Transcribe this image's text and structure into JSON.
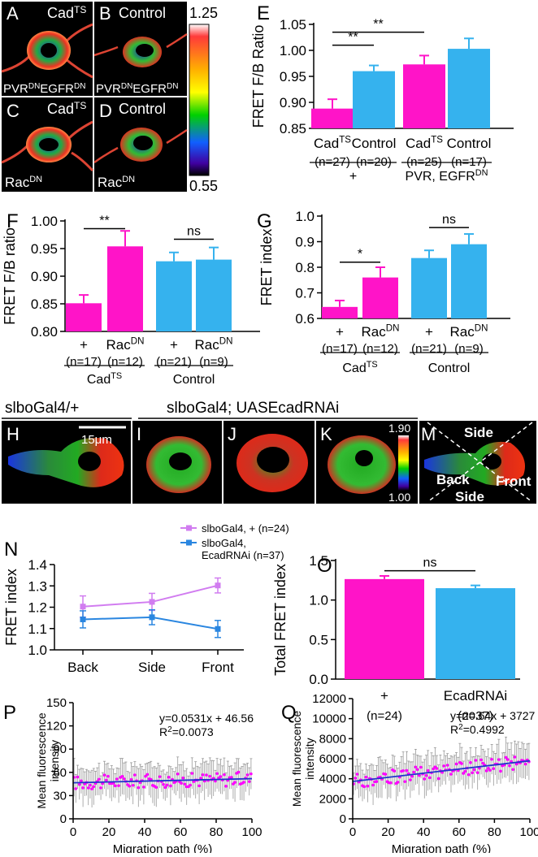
{
  "panels": {
    "A": {
      "letter": "A",
      "label": "Cad",
      "sup": "TS",
      "genotype": [
        "PVR",
        "DN",
        "EGFR",
        "DN"
      ]
    },
    "B": {
      "letter": "B",
      "label": "Control",
      "genotype": [
        "PVR",
        "DN",
        "EGFR",
        "DN"
      ]
    },
    "C": {
      "letter": "C",
      "label": "Cad",
      "sup": "TS",
      "genotype": [
        "Rac",
        "DN"
      ]
    },
    "D": {
      "letter": "D",
      "label": "Control",
      "genotype": [
        "Rac",
        "DN"
      ]
    },
    "scale1": {
      "max": "1.25",
      "min": "0.55"
    },
    "header_left": "slboGal4/+",
    "header_right": "slboGal4; UASEcadRNAi",
    "H": {
      "letter": "H",
      "scalebar": "15μm"
    },
    "I": {
      "letter": "I"
    },
    "J": {
      "letter": "J"
    },
    "K": {
      "letter": "K"
    },
    "scale2": {
      "max": "1.90",
      "min": "1.00"
    },
    "M": {
      "letter": "M",
      "side_top": "Side",
      "side_bottom": "Side",
      "back": "Back",
      "front": "Front"
    }
  },
  "colors": {
    "magenta": "#ff14c8",
    "cyan": "#35b2ee",
    "violet": "#d17cf0",
    "blue": "#2a86e0",
    "pinkdot": "#ff00ff",
    "fitline": "#2233cc"
  },
  "chart_data": [
    {
      "id": "E",
      "letter": "E",
      "type": "bar",
      "ylabel": "FRET F/B Ratio",
      "ylim": [
        0.85,
        1.05
      ],
      "yticks": [
        "0.85",
        "0.90",
        "0.95",
        "1.00",
        "1.05"
      ],
      "bars": [
        {
          "name": "Cad",
          "sup": "TS",
          "n": "(n=27)",
          "value": 0.888,
          "err": 0.018,
          "color": "magenta"
        },
        {
          "name": "Control",
          "sup": "",
          "n": "(n=20)",
          "value": 0.96,
          "err": 0.011,
          "color": "cyan"
        },
        {
          "name": "Cad",
          "sup": "TS",
          "n": "(n=25)",
          "value": 0.973,
          "err": 0.017,
          "color": "magenta"
        },
        {
          "name": "Control",
          "sup": "",
          "n": "(n=17)",
          "value": 1.003,
          "err": 0.02,
          "color": "cyan"
        }
      ],
      "groups": [
        {
          "label": "+",
          "sup": "",
          "bars": [
            0,
            1
          ]
        },
        {
          "label": "PVR, EGFR",
          "sup": "DN",
          "bars": [
            2,
            3
          ]
        }
      ],
      "sig": [
        {
          "label": "**",
          "from": 0,
          "to": 1,
          "y": 1.01
        },
        {
          "label": "**",
          "from": 0,
          "to": 2,
          "y": 1.035
        }
      ]
    },
    {
      "id": "F",
      "letter": "F",
      "type": "bar",
      "ylabel": "FRET F/B ratio",
      "ylim": [
        0.8,
        1.0
      ],
      "yticks": [
        "0.80",
        "0.85",
        "0.90",
        "0.95",
        "1.00"
      ],
      "bars": [
        {
          "name": "+",
          "sup": "",
          "n": "(n=17)",
          "value": 0.851,
          "err": 0.015,
          "color": "magenta"
        },
        {
          "name": "Rac",
          "sup": "DN",
          "n": "(n=12)",
          "value": 0.954,
          "err": 0.028,
          "color": "magenta"
        },
        {
          "name": "+",
          "sup": "",
          "n": "(n=21)",
          "value": 0.927,
          "err": 0.016,
          "color": "cyan"
        },
        {
          "name": "Rac",
          "sup": "DN",
          "n": "(n=9)",
          "value": 0.93,
          "err": 0.022,
          "color": "cyan"
        }
      ],
      "groups": [
        {
          "label": "Cad",
          "sup": "TS",
          "bars": [
            0,
            1
          ]
        },
        {
          "label": "Control",
          "sup": "",
          "bars": [
            2,
            3
          ]
        }
      ],
      "sig": [
        {
          "label": "**",
          "from": 0,
          "to": 1,
          "y": 0.986
        },
        {
          "label": "ns",
          "from": 2,
          "to": 3,
          "y": 0.967
        }
      ]
    },
    {
      "id": "G",
      "letter": "G",
      "type": "bar",
      "ylabel": "FRET index",
      "ylim": [
        0.6,
        1.0
      ],
      "yticks": [
        "0.6",
        "0.7",
        "0.8",
        "0.9",
        "1.0"
      ],
      "bars": [
        {
          "name": "+",
          "sup": "",
          "n": "(n=17)",
          "value": 0.645,
          "err": 0.025,
          "color": "magenta"
        },
        {
          "name": "Rac",
          "sup": "DN",
          "n": "(n=12)",
          "value": 0.76,
          "err": 0.04,
          "color": "magenta"
        },
        {
          "name": "+",
          "sup": "",
          "n": "(n=21)",
          "value": 0.836,
          "err": 0.03,
          "color": "cyan"
        },
        {
          "name": "Rac",
          "sup": "DN",
          "n": "(n=9)",
          "value": 0.89,
          "err": 0.04,
          "color": "cyan"
        }
      ],
      "groups": [
        {
          "label": "Cad",
          "sup": "TS",
          "bars": [
            0,
            1
          ]
        },
        {
          "label": "Control",
          "sup": "",
          "bars": [
            2,
            3
          ]
        }
      ],
      "sig": [
        {
          "label": "*",
          "from": 0,
          "to": 1,
          "y": 0.82
        },
        {
          "label": "ns",
          "from": 2,
          "to": 3,
          "y": 0.955
        }
      ]
    },
    {
      "id": "N",
      "letter": "N",
      "type": "line",
      "ylabel": "FRET index",
      "categories": [
        "Back",
        "Side",
        "Front"
      ],
      "ylim": [
        1.0,
        1.4
      ],
      "yticks": [
        "1.0",
        "1.1",
        "1.2",
        "1.3",
        "1.4"
      ],
      "series": [
        {
          "name": "slboGal4, + (n=24)",
          "values": [
            1.203,
            1.225,
            1.302
          ],
          "err": [
            0.05,
            0.04,
            0.035
          ],
          "color": "violet"
        },
        {
          "name": "slboGal4,\nEcadRNAi (n=37)",
          "values": [
            1.143,
            1.153,
            1.098
          ],
          "err": [
            0.04,
            0.035,
            0.04
          ],
          "color": "blue"
        }
      ]
    },
    {
      "id": "O",
      "letter": "O",
      "type": "bar",
      "ylabel": "Total FRET index",
      "ylim": [
        0.0,
        1.5
      ],
      "yticks": [
        "0.0",
        "0.5",
        "1.0",
        "1.5"
      ],
      "bars": [
        {
          "name": "+",
          "sup": "",
          "n": "(n=24)",
          "value": 1.265,
          "err": 0.04,
          "color": "magenta"
        },
        {
          "name": "EcadRNAi",
          "sup": "",
          "n": "(n=37)",
          "value": 1.15,
          "err": 0.035,
          "color": "cyan"
        }
      ],
      "sig": [
        {
          "label": "ns",
          "from": 0,
          "to": 1,
          "y": 1.37
        }
      ]
    },
    {
      "id": "P",
      "letter": "P",
      "type": "scatter",
      "ylabel": "Mean fluorescence\nintensity",
      "xlabel": "Migration path (%)",
      "xlim": [
        0,
        100
      ],
      "ylim": [
        0,
        150
      ],
      "xticks": [
        "0",
        "20",
        "40",
        "60",
        "80",
        "100"
      ],
      "yticks": [
        "0",
        "30",
        "60",
        "90",
        "120",
        "150"
      ],
      "equation": "y=0.0531x + 46.56",
      "r2_prefix": "R",
      "r2_sup": "2",
      "r2_value": "=0.0073",
      "slope": 0.0531,
      "intercept": 46.56
    },
    {
      "id": "Q",
      "letter": "Q",
      "type": "scatter",
      "ylabel": "Mean fluorescence\nintensity",
      "xlabel": "Migration path (%)",
      "xlim": [
        0,
        100
      ],
      "ylim": [
        0,
        12000
      ],
      "xticks": [
        "0",
        "20",
        "40",
        "60",
        "80",
        "100"
      ],
      "yticks": [
        "0",
        "2000",
        "4000",
        "6000",
        "8000",
        "10000",
        "12000"
      ],
      "equation": "y=20.64x + 3727",
      "r2_prefix": "R",
      "r2_sup": "2",
      "r2_value": "=0.4992",
      "slope": 20.64,
      "intercept": 3727
    }
  ]
}
